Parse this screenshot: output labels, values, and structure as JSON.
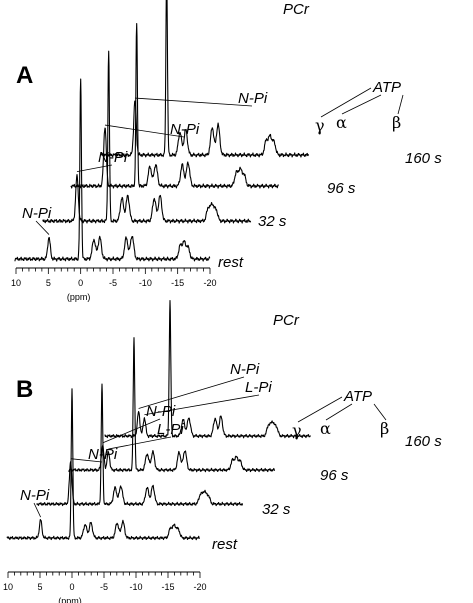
{
  "chart_data": [
    {
      "type": "line",
      "panel": "A",
      "xlabel": "(ppm)",
      "xlim": [
        10,
        -20
      ],
      "x_ticks": [
        "10",
        "5",
        "0",
        "-5",
        "-10",
        "-15",
        "-20"
      ],
      "series": [
        {
          "name": "rest",
          "peaks": [
            {
              "label": "N-Pi",
              "ppm": 4.9,
              "height": 0.12
            },
            {
              "label": "PCr",
              "ppm": 0.0,
              "height": 1.0
            },
            {
              "label": "γ",
              "ppm": -2.5,
              "height": 0.12
            },
            {
              "label": "α",
              "ppm": -7.5,
              "height": 0.13
            },
            {
              "label": "β",
              "ppm": -16.0,
              "height": 0.09
            }
          ]
        },
        {
          "name": "32 s",
          "peaks": [
            {
              "label": "N-Pi",
              "ppm": 4.9,
              "height": 0.25
            },
            {
              "label": "PCr",
              "ppm": 0.0,
              "height": 0.94
            },
            {
              "label": "γ",
              "ppm": -2.5,
              "height": 0.14
            },
            {
              "label": "α",
              "ppm": -7.5,
              "height": 0.14
            },
            {
              "label": "β",
              "ppm": -16.0,
              "height": 0.09
            }
          ]
        },
        {
          "name": "96 s",
          "peaks": [
            {
              "label": "N-Pi",
              "ppm": 4.9,
              "height": 0.33
            },
            {
              "label": "PCr",
              "ppm": 0.0,
              "height": 0.9
            },
            {
              "label": "γ",
              "ppm": -2.5,
              "height": 0.12
            },
            {
              "label": "α",
              "ppm": -7.5,
              "height": 0.13
            },
            {
              "label": "β",
              "ppm": -16.0,
              "height": 0.09
            }
          ]
        },
        {
          "name": "160 s",
          "peaks": [
            {
              "label": "N-Pi",
              "ppm": 4.9,
              "height": 0.3
            },
            {
              "label": "PCr",
              "ppm": 0.0,
              "height": 1.0
            },
            {
              "label": "γ",
              "ppm": -2.5,
              "height": 0.14
            },
            {
              "label": "α",
              "ppm": -7.5,
              "height": 0.17
            },
            {
              "label": "β",
              "ppm": -16.0,
              "height": 0.1
            }
          ]
        }
      ],
      "annotations": [
        "N-Pi",
        "N-Pi",
        "N-Pi",
        "N-Pi",
        "PCr",
        "ATP",
        "γ",
        "α",
        "β"
      ]
    },
    {
      "type": "line",
      "panel": "B",
      "xlabel": "(ppm)",
      "xlim": [
        10,
        -20
      ],
      "x_ticks": [
        "10",
        "5",
        "0",
        "-5",
        "-10",
        "-15",
        "-20"
      ],
      "series": [
        {
          "name": "rest",
          "peaks": [
            {
              "label": "N-Pi",
              "ppm": 4.9,
              "height": 0.12
            },
            {
              "label": "PCr",
              "ppm": 0.0,
              "height": 1.0
            },
            {
              "label": "γ",
              "ppm": -2.5,
              "height": 0.1
            },
            {
              "label": "α",
              "ppm": -7.5,
              "height": 0.11
            },
            {
              "label": "β",
              "ppm": -16.0,
              "height": 0.08
            }
          ]
        },
        {
          "name": "32 s",
          "peaks": [
            {
              "label": "N-Pi",
              "ppm": 4.9,
              "height": 0.28
            },
            {
              "label": "PCr",
              "ppm": 0.0,
              "height": 0.8
            },
            {
              "label": "γ",
              "ppm": -2.5,
              "height": 0.12
            },
            {
              "label": "α",
              "ppm": -7.5,
              "height": 0.12
            },
            {
              "label": "β",
              "ppm": -16.0,
              "height": 0.08
            }
          ]
        },
        {
          "name": "96 s",
          "peaks": [
            {
              "label": "N-Pi",
              "ppm": 4.9,
              "height": 0.16
            },
            {
              "label": "L-Pi",
              "ppm": 4.0,
              "height": 0.12
            },
            {
              "label": "PCr",
              "ppm": 0.0,
              "height": 0.88
            },
            {
              "label": "γ",
              "ppm": -2.5,
              "height": 0.12
            },
            {
              "label": "α",
              "ppm": -7.5,
              "height": 0.13
            },
            {
              "label": "β",
              "ppm": -16.0,
              "height": 0.08
            }
          ]
        },
        {
          "name": "160 s",
          "peaks": [
            {
              "label": "N-Pi",
              "ppm": 4.9,
              "height": 0.16
            },
            {
              "label": "L-Pi",
              "ppm": 4.0,
              "height": 0.12
            },
            {
              "label": "PCr",
              "ppm": 0.0,
              "height": 0.9
            },
            {
              "label": "γ",
              "ppm": -2.5,
              "height": 0.12
            },
            {
              "label": "α",
              "ppm": -7.5,
              "height": 0.13
            },
            {
              "label": "β",
              "ppm": -16.0,
              "height": 0.09
            }
          ]
        }
      ],
      "annotations": [
        "N-Pi",
        "N-Pi",
        "N-Pi",
        "L-Pi",
        "N-Pi",
        "L-Pi",
        "PCr",
        "ATP",
        "γ",
        "α",
        "β"
      ]
    }
  ]
}
